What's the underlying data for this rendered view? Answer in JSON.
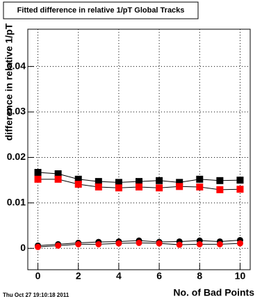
{
  "chart_data": {
    "type": "scatter",
    "title": "Fitted difference in relative 1/pT  Global Tracks",
    "xlabel": "No. of Bad Points",
    "ylabel": "difference in relative 1/pT",
    "date_stamp": "Thu Oct 27 19:10:18 2011",
    "x": [
      0,
      1,
      2,
      3,
      4,
      5,
      6,
      7,
      8,
      9,
      10
    ],
    "series": [
      {
        "color": "#000000",
        "marker": "square",
        "values": [
          0.0167,
          0.0164,
          0.0152,
          0.0147,
          0.0145,
          0.0147,
          0.0149,
          0.0145,
          0.0152,
          0.0149,
          0.015
        ]
      },
      {
        "color": "#ff0000",
        "marker": "square",
        "values": [
          0.0152,
          0.0152,
          0.0141,
          0.0135,
          0.0133,
          0.0135,
          0.0133,
          0.0136,
          0.0135,
          0.0129,
          0.013
        ]
      },
      {
        "color": "#000000",
        "marker": "circle",
        "values": [
          0.0006,
          0.0009,
          0.0012,
          0.0014,
          0.0015,
          0.0017,
          0.0014,
          0.0015,
          0.0017,
          0.0015,
          0.0018
        ]
      },
      {
        "color": "#ff0000",
        "marker": "circle",
        "values": [
          0.0003,
          0.0006,
          0.0009,
          0.0009,
          0.0011,
          0.0012,
          0.0011,
          0.0008,
          0.0009,
          0.0009,
          0.0011
        ]
      }
    ],
    "xlim": [
      -0.5,
      10.5
    ],
    "xticks": [
      0,
      2,
      4,
      6,
      8,
      10
    ],
    "ylim": [
      -0.0047,
      0.0482
    ],
    "yticks": [
      0,
      0.01,
      0.02,
      0.03,
      0.04
    ],
    "grid": true
  }
}
